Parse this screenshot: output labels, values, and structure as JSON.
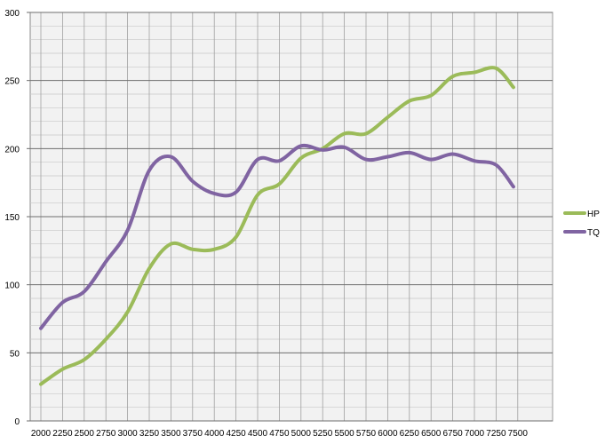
{
  "chart_data": {
    "type": "line",
    "title": "",
    "xlabel": "",
    "ylabel": "",
    "x": [
      2000,
      2250,
      2500,
      2750,
      3000,
      3250,
      3500,
      3750,
      4000,
      4250,
      4500,
      4750,
      5000,
      5250,
      5500,
      5750,
      6000,
      6250,
      6500,
      6750,
      7000,
      7250,
      7500
    ],
    "x_tick_labels": [
      "2000",
      "2250",
      "2500",
      "2750",
      "3000",
      "3250",
      "3500",
      "3750",
      "4000",
      "4250",
      "4500",
      "4750",
      "5000",
      "5250",
      "5500",
      "5750",
      "6000",
      "6250",
      "6500",
      "6750",
      "7000",
      "7250",
      "7500"
    ],
    "ylim": [
      0,
      300
    ],
    "y_ticks": [
      0,
      50,
      100,
      150,
      200,
      250,
      300
    ],
    "grid": true,
    "legend_position": "right",
    "series": [
      {
        "name": "HP",
        "color": "#9bbb59",
        "points": [
          [
            2000,
            27
          ],
          [
            2250,
            38
          ],
          [
            2500,
            45
          ],
          [
            2750,
            60
          ],
          [
            3000,
            80
          ],
          [
            3250,
            112
          ],
          [
            3500,
            130
          ],
          [
            3750,
            126
          ],
          [
            4000,
            126
          ],
          [
            4250,
            135
          ],
          [
            4500,
            166
          ],
          [
            4750,
            174
          ],
          [
            5000,
            193
          ],
          [
            5250,
            200
          ],
          [
            5500,
            211
          ],
          [
            5750,
            211
          ],
          [
            6000,
            223
          ],
          [
            6250,
            235
          ],
          [
            6500,
            239
          ],
          [
            6750,
            253
          ],
          [
            7000,
            256
          ],
          [
            7250,
            259
          ],
          [
            7450,
            245
          ]
        ]
      },
      {
        "name": "TQ",
        "color": "#8064a2",
        "points": [
          [
            2000,
            68
          ],
          [
            2250,
            87
          ],
          [
            2500,
            95
          ],
          [
            2750,
            117
          ],
          [
            3000,
            140
          ],
          [
            3250,
            184
          ],
          [
            3500,
            194
          ],
          [
            3750,
            176
          ],
          [
            4000,
            167
          ],
          [
            4250,
            168
          ],
          [
            4500,
            192
          ],
          [
            4750,
            191
          ],
          [
            5000,
            202
          ],
          [
            5250,
            199
          ],
          [
            5500,
            201
          ],
          [
            5750,
            192
          ],
          [
            6000,
            194
          ],
          [
            6250,
            197
          ],
          [
            6500,
            192
          ],
          [
            6750,
            196
          ],
          [
            7000,
            191
          ],
          [
            7250,
            188
          ],
          [
            7450,
            172
          ]
        ]
      }
    ]
  }
}
